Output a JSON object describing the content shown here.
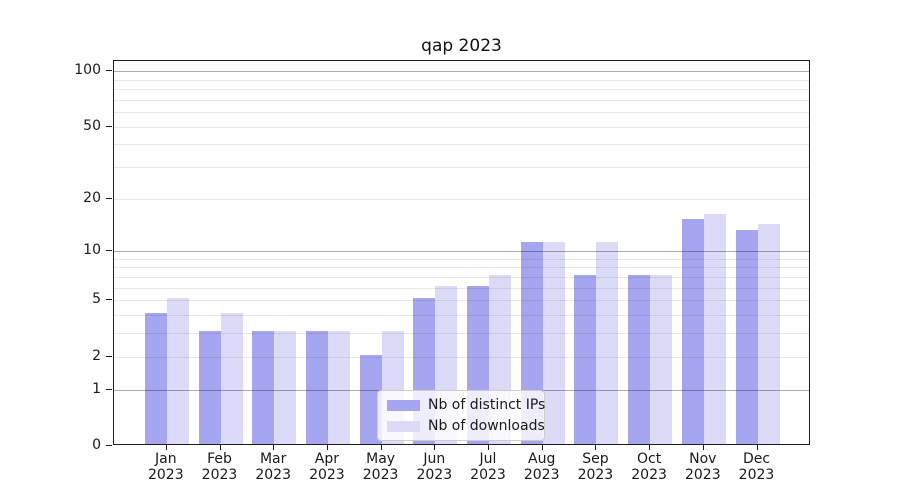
{
  "title": "qap 2023",
  "chart_data": {
    "type": "bar",
    "title": "qap 2023",
    "categories": [
      "Jan 2023",
      "Feb 2023",
      "Mar 2023",
      "Apr 2023",
      "May 2023",
      "Jun 2023",
      "Jul 2023",
      "Aug 2023",
      "Sep 2023",
      "Oct 2023",
      "Nov 2023",
      "Dec 2023"
    ],
    "category_months": [
      "Jan",
      "Feb",
      "Mar",
      "Apr",
      "May",
      "Jun",
      "Jul",
      "Aug",
      "Sep",
      "Oct",
      "Nov",
      "Dec"
    ],
    "category_year": "2023",
    "series": [
      {
        "name": "Nb of distinct IPs",
        "color": "#a5a5f0",
        "values": [
          4,
          3,
          3,
          3,
          2,
          5,
          6,
          11,
          7,
          7,
          15,
          13
        ]
      },
      {
        "name": "Nb of downloads",
        "color": "#dbdbf7",
        "values": [
          5,
          4,
          3,
          3,
          3,
          6,
          7,
          11,
          11,
          7,
          16,
          14
        ]
      }
    ],
    "xlabel": "",
    "ylabel": "",
    "yscale": "log10(value+1)",
    "ylim": [
      0,
      113
    ],
    "ytick_values": [
      100,
      50,
      20,
      10,
      5,
      2,
      1,
      0
    ],
    "ytick_labels": [
      "100",
      "50",
      "20",
      "10",
      "5",
      "2",
      "1",
      "0"
    ],
    "grid_minor_values": [
      2,
      3,
      4,
      5,
      6,
      7,
      8,
      9,
      20,
      30,
      40,
      50,
      60,
      70,
      80,
      90
    ],
    "grid_major_values": [
      1,
      10,
      100
    ],
    "grid": "on",
    "legend_position": "lower center",
    "colors": {
      "bar_distinct_ips": "#a5a5f0",
      "bar_downloads": "#dbdbf7",
      "grid_major": "#adadad",
      "grid_minor": "#e9e9e9",
      "spine": "#1c1c1c",
      "legend_border": "#cccccc"
    }
  }
}
